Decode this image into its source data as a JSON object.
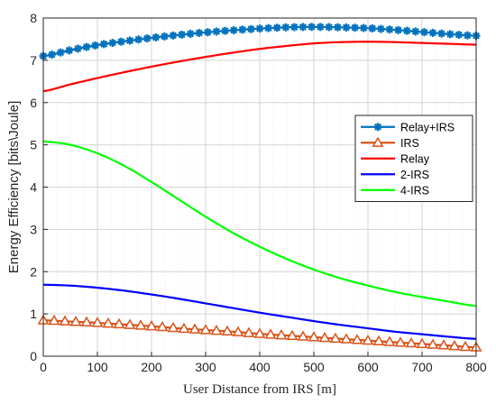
{
  "chart_data": {
    "type": "line",
    "title": "",
    "xlabel": "User Distance from IRS [m]",
    "ylabel": "Energy Efficiency [bits\\Joule]",
    "xlim": [
      0,
      800
    ],
    "ylim": [
      0,
      8
    ],
    "xticks": [
      0,
      100,
      200,
      300,
      400,
      500,
      600,
      700,
      800
    ],
    "yticks": [
      0,
      1,
      2,
      3,
      4,
      5,
      6,
      7,
      8
    ],
    "grid": true,
    "legend_position": "right",
    "x": [
      0,
      50,
      100,
      150,
      200,
      250,
      300,
      350,
      400,
      450,
      500,
      550,
      600,
      650,
      700,
      750,
      800
    ],
    "series": [
      {
        "name": "Relay+IRS",
        "color": "#0072BD",
        "marker": "asterisk",
        "values": [
          7.1,
          7.24,
          7.36,
          7.45,
          7.53,
          7.6,
          7.66,
          7.71,
          7.75,
          7.78,
          7.79,
          7.78,
          7.76,
          7.72,
          7.67,
          7.62,
          7.58
        ]
      },
      {
        "name": "IRS",
        "color": "#D95319",
        "marker": "triangle",
        "values": [
          0.85,
          0.82,
          0.79,
          0.75,
          0.71,
          0.66,
          0.62,
          0.58,
          0.53,
          0.49,
          0.45,
          0.41,
          0.37,
          0.33,
          0.29,
          0.25,
          0.21
        ]
      },
      {
        "name": "Relay",
        "color": "#FF0000",
        "marker": "none",
        "values": [
          6.27,
          6.43,
          6.58,
          6.72,
          6.85,
          6.97,
          7.08,
          7.18,
          7.27,
          7.34,
          7.4,
          7.43,
          7.44,
          7.43,
          7.41,
          7.39,
          7.37
        ]
      },
      {
        "name": "2-IRS",
        "color": "#0000FF",
        "marker": "none",
        "values": [
          1.69,
          1.67,
          1.62,
          1.55,
          1.46,
          1.36,
          1.25,
          1.14,
          1.03,
          0.93,
          0.83,
          0.74,
          0.66,
          0.58,
          0.52,
          0.46,
          0.41
        ]
      },
      {
        "name": "4-IRS",
        "color": "#00FF00",
        "marker": "none",
        "values": [
          5.08,
          5.0,
          4.8,
          4.5,
          4.12,
          3.71,
          3.3,
          2.92,
          2.59,
          2.3,
          2.05,
          1.84,
          1.67,
          1.52,
          1.4,
          1.29,
          1.19
        ]
      }
    ]
  }
}
